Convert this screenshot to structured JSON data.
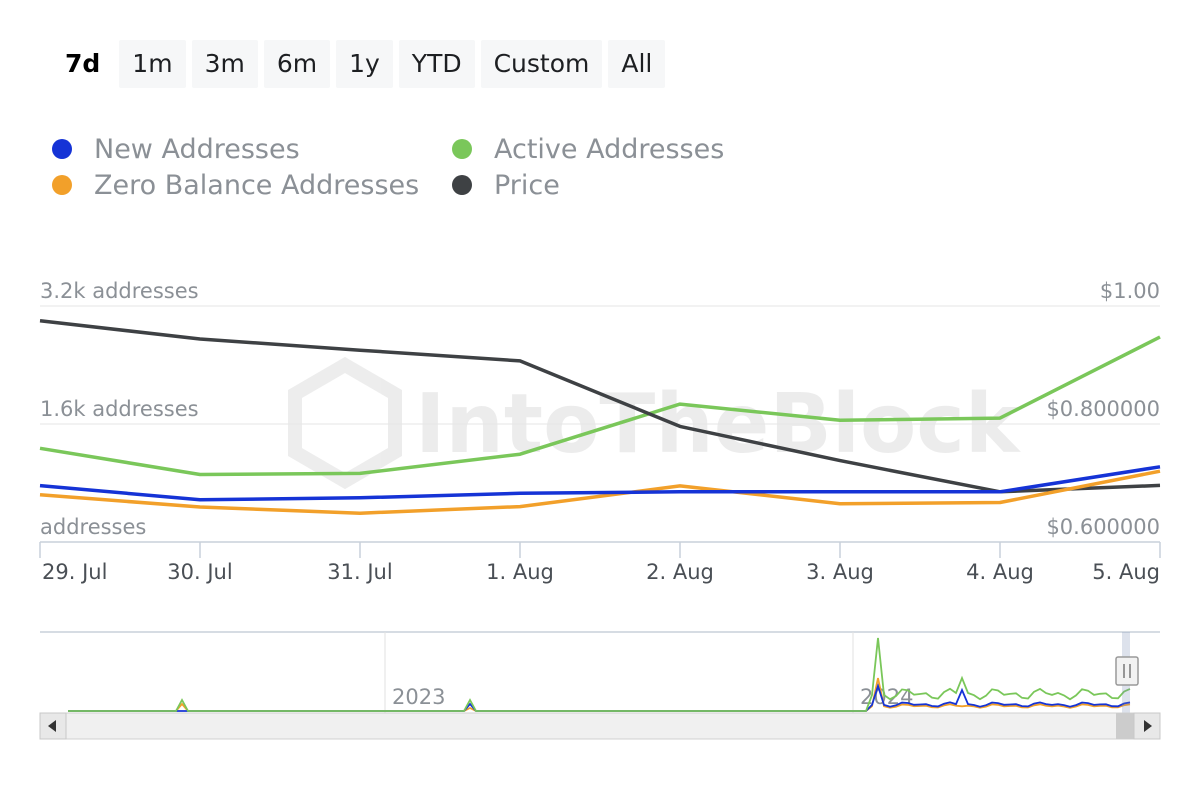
{
  "range_selector": {
    "buttons": [
      "7d",
      "1m",
      "3m",
      "6m",
      "1y",
      "YTD",
      "Custom",
      "All"
    ],
    "selected": "7d"
  },
  "watermark": "IntoTheBlock",
  "chart_data": {
    "type": "line",
    "x": [
      "29. Jul",
      "30. Jul",
      "31. Jul",
      "1. Aug",
      "2. Aug",
      "3. Aug",
      "4. Aug",
      "5. Aug"
    ],
    "series": [
      {
        "name": "New Addresses",
        "axis": "left",
        "color": "#1533d6",
        "values": [
          765,
          572,
          600,
          660,
          680,
          680,
          680,
          1020
        ]
      },
      {
        "name": "Active Addresses",
        "axis": "left",
        "color": "#7ac75a",
        "values": [
          1270,
          915,
          930,
          1190,
          1870,
          1650,
          1680,
          2780
        ]
      },
      {
        "name": "Zero Balance Addresses",
        "axis": "left",
        "color": "#f2a02a",
        "values": [
          640,
          475,
          390,
          480,
          760,
          520,
          535,
          960
        ]
      },
      {
        "name": "Price",
        "axis": "right",
        "color": "#3e4144",
        "values": [
          0.975,
          0.944,
          0.925,
          0.907,
          0.796,
          0.738,
          0.685,
          0.696
        ]
      }
    ],
    "y_left": {
      "ticks": [
        3200,
        1600,
        0
      ],
      "tick_labels": [
        "3.2k addresses",
        "1.6k addresses",
        "addresses"
      ],
      "range": [
        0,
        3200
      ]
    },
    "y_right": {
      "ticks": [
        1.0,
        0.8,
        0.6
      ],
      "tick_labels": [
        "$1.00",
        "$0.800000",
        "$0.600000"
      ],
      "range": [
        0.6,
        1.0
      ]
    },
    "grid": true,
    "legend_position": "top-left",
    "navigator": {
      "year_labels": [
        "2023",
        "2024"
      ],
      "series": [
        {
          "color": "#7ac75a",
          "values": [
            0,
            0,
            0,
            0,
            0,
            0,
            0,
            0,
            0,
            0,
            0,
            0,
            0,
            0,
            0,
            0,
            0,
            0,
            0,
            0,
            0,
            0,
            0,
            0,
            0,
            0,
            0,
            0,
            0,
            0,
            0,
            0,
            0,
            0,
            0,
            0,
            0,
            0,
            0,
            0,
            0,
            0,
            0,
            0,
            0,
            0,
            0,
            0,
            0,
            0,
            0,
            0,
            0,
            0,
            0,
            0,
            0,
            0,
            0,
            0,
            0,
            0,
            0,
            0,
            0,
            0,
            0,
            0,
            0,
            0,
            0,
            0,
            0,
            0,
            0,
            0,
            0,
            0,
            0,
            0,
            0,
            0,
            0,
            0,
            0,
            0,
            0,
            0,
            0,
            0,
            0,
            0,
            0,
            0,
            0,
            0,
            0,
            0,
            0,
            0
          ]
        },
        {
          "color": "#1533d6",
          "values": []
        },
        {
          "color": "#f2a02a",
          "values": []
        }
      ]
    }
  }
}
